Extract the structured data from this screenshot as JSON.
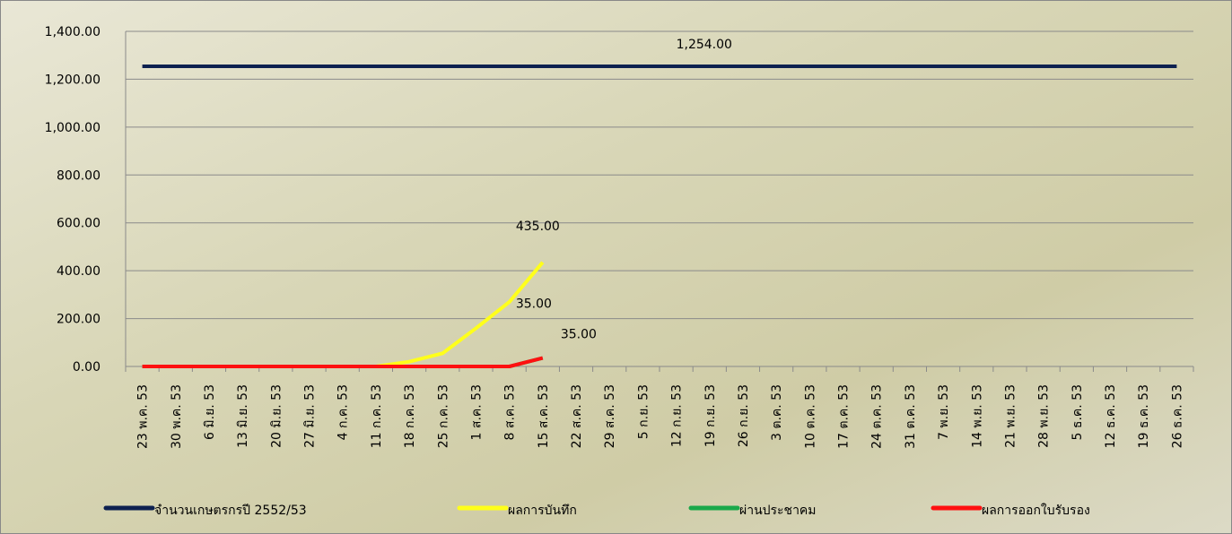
{
  "chart_data": {
    "type": "line",
    "categories": [
      "23 พ.ค. 53",
      "30 พ.ค. 53",
      "6 มิ.ย. 53",
      "13 มิ.ย. 53",
      "20 มิ.ย. 53",
      "27 มิ.ย. 53",
      "4 ก.ค. 53",
      "11 ก.ค. 53",
      "18 ก.ค. 53",
      "25 ก.ค. 53",
      "1 ส.ค. 53",
      "8 ส.ค. 53",
      "15 ส.ค. 53",
      "22 ส.ค. 53",
      "29 ส.ค. 53",
      "5 ก.ย. 53",
      "12 ก.ย. 53",
      "19 ก.ย. 53",
      "26 ก.ย. 53",
      "3 ต.ค. 53",
      "10 ต.ค. 53",
      "17 ต.ค. 53",
      "24 ต.ค. 53",
      "31 ต.ค. 53",
      "7 พ.ย. 53",
      "14 พ.ย. 53",
      "21 พ.ย. 53",
      "28 พ.ย. 53",
      "5 ธ.ค. 53",
      "12 ธ.ค. 53",
      "19 ธ.ค. 53",
      "26 ธ.ค. 53"
    ],
    "series": [
      {
        "name": "จำนวนเกษตรกรปี  2552/53",
        "color": "#0d2150",
        "values": [
          1254,
          1254,
          1254,
          1254,
          1254,
          1254,
          1254,
          1254,
          1254,
          1254,
          1254,
          1254,
          1254,
          1254,
          1254,
          1254,
          1254,
          1254,
          1254,
          1254,
          1254,
          1254,
          1254,
          1254,
          1254,
          1254,
          1254,
          1254,
          1254,
          1254,
          1254,
          1254
        ],
        "value_labels": [
          null,
          null,
          null,
          null,
          null,
          null,
          null,
          null,
          null,
          null,
          null,
          null,
          null,
          null,
          null,
          null,
          "1,254.00",
          null,
          null,
          null,
          null,
          null,
          null,
          null,
          null,
          null,
          null,
          null,
          null,
          null,
          null,
          null
        ]
      },
      {
        "name": "ผลการบันทึก",
        "color": "#ffff1a",
        "values": [
          0,
          0,
          0,
          0,
          0,
          0,
          0,
          0,
          20,
          55,
          160,
          270,
          435,
          null,
          null,
          null,
          null,
          null,
          null,
          null,
          null,
          null,
          null,
          null,
          null,
          null,
          null,
          null,
          null,
          null,
          null,
          null
        ],
        "value_labels": [
          null,
          null,
          null,
          null,
          null,
          null,
          null,
          null,
          null,
          null,
          null,
          null,
          "435.00",
          null,
          null,
          null,
          null,
          null,
          null,
          null,
          null,
          null,
          null,
          null,
          null,
          null,
          null,
          null,
          null,
          null,
          null,
          null
        ]
      },
      {
        "name": "ผ่านประชาคม",
        "color": "#1aa84a",
        "values": [
          0,
          0,
          0,
          0,
          0,
          0,
          0,
          0,
          0,
          0,
          0,
          0,
          35,
          null,
          null,
          null,
          null,
          null,
          null,
          null,
          null,
          null,
          null,
          null,
          null,
          null,
          null,
          null,
          null,
          null,
          null,
          null
        ],
        "value_labels": [
          null,
          null,
          null,
          null,
          null,
          null,
          null,
          null,
          null,
          null,
          null,
          null,
          "35.00",
          null,
          null,
          null,
          null,
          null,
          null,
          null,
          null,
          null,
          null,
          null,
          null,
          null,
          null,
          null,
          null,
          null,
          null,
          null
        ]
      },
      {
        "name": "ผลการออกใบรับรอง",
        "color": "#ff1010",
        "values": [
          0,
          0,
          0,
          0,
          0,
          0,
          0,
          0,
          0,
          0,
          0,
          0,
          35,
          null,
          null,
          null,
          null,
          null,
          null,
          null,
          null,
          null,
          null,
          null,
          null,
          null,
          null,
          null,
          null,
          null,
          null,
          null
        ],
        "value_labels": [
          null,
          null,
          null,
          null,
          null,
          null,
          null,
          null,
          null,
          null,
          null,
          null,
          "35.00",
          null,
          null,
          null,
          null,
          null,
          null,
          null,
          null,
          null,
          null,
          null,
          null,
          null,
          null,
          null,
          null,
          null,
          null,
          null
        ]
      }
    ],
    "ylim": [
      0,
      1400
    ],
    "yticks": [
      {
        "value": 0,
        "label": "0.00"
      },
      {
        "value": 200,
        "label": "200.00"
      },
      {
        "value": 400,
        "label": "400.00"
      },
      {
        "value": 600,
        "label": "600.00"
      },
      {
        "value": 800,
        "label": "800.00"
      },
      {
        "value": 1000,
        "label": "1,000.00"
      },
      {
        "value": 1200,
        "label": "1,200.00"
      },
      {
        "value": 1400,
        "label": "1,400.00"
      }
    ],
    "grid": true,
    "legend": "bottom"
  }
}
